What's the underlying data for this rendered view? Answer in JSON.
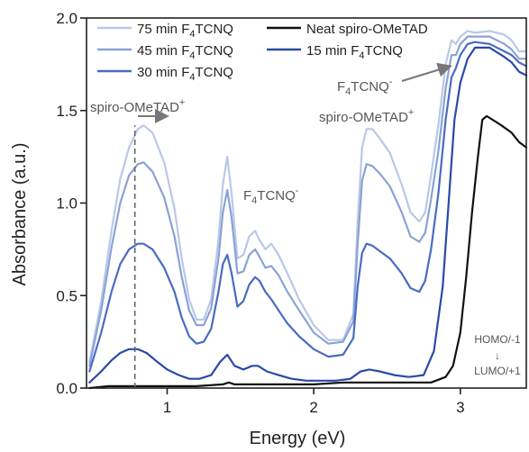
{
  "chart_data": {
    "type": "line",
    "xlabel": "Energy (eV)",
    "ylabel": "Absorbance (a.u.)",
    "xlim": [
      0.45,
      3.45
    ],
    "ylim": [
      0.0,
      2.0
    ],
    "x_ticks": [
      "1",
      "2",
      "3"
    ],
    "x_tick_values": [
      1,
      2,
      3
    ],
    "y_ticks": [
      "0.0",
      "0.5",
      "1.0",
      "1.5",
      "2.0"
    ],
    "y_tick_values": [
      0.0,
      0.5,
      1.0,
      1.5,
      2.0
    ],
    "grid": false,
    "legend_position": "top-left",
    "legend": [
      {
        "series_index": 0,
        "label_main": "75 min F",
        "label_sub": "4",
        "label_tail": "TCNQ"
      },
      {
        "series_index": 1,
        "label_main": "45 min F",
        "label_sub": "4",
        "label_tail": "TCNQ"
      },
      {
        "series_index": 2,
        "label_main": "30 min F",
        "label_sub": "4",
        "label_tail": "TCNQ"
      },
      {
        "series_index": 4,
        "label_main": "Neat spiro-OMeTAD",
        "label_sub": "",
        "label_tail": ""
      },
      {
        "series_index": 3,
        "label_main": "15 min F",
        "label_sub": "4",
        "label_tail": "TCNQ"
      }
    ],
    "series": [
      {
        "name": "75 min F4TCNQ",
        "color": "#b9c8e8",
        "x": [
          0.47,
          0.55,
          0.62,
          0.68,
          0.74,
          0.8,
          0.84,
          0.9,
          0.98,
          1.05,
          1.1,
          1.15,
          1.2,
          1.25,
          1.3,
          1.35,
          1.38,
          1.41,
          1.44,
          1.48,
          1.52,
          1.56,
          1.6,
          1.63,
          1.67,
          1.71,
          1.76,
          1.82,
          1.9,
          2.0,
          2.1,
          2.2,
          2.27,
          2.3,
          2.33,
          2.36,
          2.4,
          2.45,
          2.52,
          2.6,
          2.66,
          2.72,
          2.76,
          2.8,
          2.85,
          2.9,
          2.94,
          2.97,
          3.0,
          3.05,
          3.1,
          3.2,
          3.3,
          3.35,
          3.4,
          3.45
        ],
        "y": [
          0.14,
          0.47,
          0.85,
          1.13,
          1.3,
          1.4,
          1.42,
          1.38,
          1.22,
          0.97,
          0.7,
          0.48,
          0.37,
          0.37,
          0.48,
          0.8,
          1.1,
          1.25,
          1.05,
          0.7,
          0.72,
          0.82,
          0.85,
          0.8,
          0.75,
          0.78,
          0.72,
          0.62,
          0.48,
          0.34,
          0.26,
          0.26,
          0.4,
          0.9,
          1.3,
          1.4,
          1.4,
          1.35,
          1.27,
          1.1,
          0.95,
          0.9,
          0.95,
          1.15,
          1.42,
          1.75,
          1.88,
          1.86,
          1.9,
          1.93,
          1.92,
          1.93,
          1.91,
          1.88,
          1.82,
          1.82
        ]
      },
      {
        "name": "45 min F4TCNQ",
        "color": "#8aa2d6",
        "x": [
          0.47,
          0.55,
          0.62,
          0.68,
          0.74,
          0.8,
          0.84,
          0.9,
          0.98,
          1.05,
          1.1,
          1.15,
          1.2,
          1.25,
          1.3,
          1.35,
          1.38,
          1.41,
          1.44,
          1.48,
          1.52,
          1.56,
          1.6,
          1.63,
          1.67,
          1.71,
          1.76,
          1.82,
          1.9,
          2.0,
          2.1,
          2.2,
          2.27,
          2.3,
          2.33,
          2.36,
          2.4,
          2.45,
          2.52,
          2.6,
          2.66,
          2.72,
          2.76,
          2.8,
          2.85,
          2.9,
          2.94,
          2.97,
          3.0,
          3.05,
          3.1,
          3.2,
          3.3,
          3.35,
          3.4,
          3.45
        ],
        "y": [
          0.12,
          0.42,
          0.76,
          1.0,
          1.15,
          1.21,
          1.22,
          1.17,
          1.03,
          0.82,
          0.6,
          0.42,
          0.34,
          0.34,
          0.43,
          0.7,
          0.95,
          1.07,
          0.92,
          0.62,
          0.63,
          0.72,
          0.75,
          0.71,
          0.65,
          0.66,
          0.61,
          0.52,
          0.42,
          0.3,
          0.24,
          0.25,
          0.36,
          0.78,
          1.12,
          1.21,
          1.2,
          1.16,
          1.09,
          0.95,
          0.82,
          0.79,
          0.84,
          1.02,
          1.28,
          1.62,
          1.8,
          1.8,
          1.86,
          1.9,
          1.9,
          1.9,
          1.86,
          1.83,
          1.78,
          1.78
        ]
      },
      {
        "name": "30 min F4TCNQ",
        "color": "#4a6bc2",
        "x": [
          0.47,
          0.55,
          0.62,
          0.68,
          0.74,
          0.8,
          0.84,
          0.9,
          0.98,
          1.05,
          1.1,
          1.15,
          1.2,
          1.25,
          1.3,
          1.35,
          1.38,
          1.41,
          1.44,
          1.48,
          1.52,
          1.56,
          1.6,
          1.63,
          1.67,
          1.71,
          1.76,
          1.82,
          1.9,
          2.0,
          2.1,
          2.2,
          2.27,
          2.3,
          2.33,
          2.36,
          2.4,
          2.45,
          2.52,
          2.6,
          2.66,
          2.72,
          2.76,
          2.8,
          2.85,
          2.9,
          2.94,
          2.97,
          3.0,
          3.05,
          3.1,
          3.2,
          3.3,
          3.35,
          3.4,
          3.45
        ],
        "y": [
          0.09,
          0.3,
          0.52,
          0.67,
          0.75,
          0.78,
          0.78,
          0.75,
          0.65,
          0.52,
          0.38,
          0.28,
          0.24,
          0.25,
          0.32,
          0.52,
          0.67,
          0.72,
          0.62,
          0.44,
          0.47,
          0.56,
          0.6,
          0.58,
          0.52,
          0.48,
          0.42,
          0.35,
          0.28,
          0.21,
          0.17,
          0.18,
          0.27,
          0.55,
          0.73,
          0.78,
          0.77,
          0.74,
          0.7,
          0.62,
          0.54,
          0.52,
          0.58,
          0.75,
          1.05,
          1.45,
          1.68,
          1.73,
          1.8,
          1.86,
          1.87,
          1.86,
          1.82,
          1.8,
          1.76,
          1.74
        ]
      },
      {
        "name": "15 min F4TCNQ",
        "color": "#2a4aa8",
        "x": [
          0.47,
          0.55,
          0.62,
          0.68,
          0.74,
          0.8,
          0.86,
          0.92,
          1.0,
          1.08,
          1.15,
          1.22,
          1.3,
          1.36,
          1.41,
          1.46,
          1.52,
          1.58,
          1.62,
          1.68,
          1.76,
          1.85,
          1.95,
          2.05,
          2.15,
          2.25,
          2.32,
          2.38,
          2.45,
          2.55,
          2.65,
          2.75,
          2.82,
          2.88,
          2.92,
          2.96,
          3.0,
          3.05,
          3.1,
          3.2,
          3.3,
          3.35,
          3.4,
          3.45
        ],
        "y": [
          0.03,
          0.09,
          0.15,
          0.19,
          0.21,
          0.21,
          0.19,
          0.15,
          0.1,
          0.07,
          0.05,
          0.05,
          0.07,
          0.14,
          0.18,
          0.12,
          0.1,
          0.12,
          0.12,
          0.09,
          0.07,
          0.05,
          0.04,
          0.04,
          0.04,
          0.05,
          0.09,
          0.1,
          0.09,
          0.07,
          0.06,
          0.07,
          0.2,
          0.55,
          1.0,
          1.45,
          1.65,
          1.78,
          1.84,
          1.84,
          1.79,
          1.76,
          1.71,
          1.69
        ]
      },
      {
        "name": "Neat spiro-OMeTAD",
        "color": "#111111",
        "x": [
          0.47,
          0.6,
          0.8,
          1.0,
          1.2,
          1.38,
          1.42,
          1.46,
          1.6,
          1.8,
          2.0,
          2.2,
          2.3,
          2.4,
          2.5,
          2.6,
          2.7,
          2.8,
          2.9,
          2.95,
          3.0,
          3.04,
          3.08,
          3.12,
          3.15,
          3.18,
          3.22,
          3.28,
          3.35,
          3.4,
          3.45
        ],
        "y": [
          0.0,
          0.01,
          0.01,
          0.01,
          0.01,
          0.02,
          0.03,
          0.02,
          0.02,
          0.02,
          0.02,
          0.03,
          0.03,
          0.03,
          0.03,
          0.03,
          0.03,
          0.03,
          0.06,
          0.12,
          0.3,
          0.6,
          0.95,
          1.25,
          1.45,
          1.47,
          1.45,
          1.42,
          1.38,
          1.33,
          1.3
        ]
      }
    ],
    "reference_line": {
      "x": 0.78
    },
    "annotations": [
      {
        "id": "spiro-low",
        "main": "spiro-OMeTAD",
        "sup": "+",
        "sub": "",
        "tail": ""
      },
      {
        "id": "f4-mid",
        "main": "F",
        "sup": "",
        "sub": "4",
        "tail": "TCNQ",
        "sup2": "-"
      },
      {
        "id": "f4-high",
        "main": "F",
        "sup": "",
        "sub": "4",
        "tail": "TCNQ",
        "sup2": "-"
      },
      {
        "id": "spiro-high",
        "main": "spiro-OMeTAD",
        "sup": "+",
        "sub": "",
        "tail": ""
      },
      {
        "id": "homo-lumo",
        "line1": "HOMO/-1",
        "arrow": "↓",
        "line2": "LUMO/+1"
      }
    ]
  }
}
